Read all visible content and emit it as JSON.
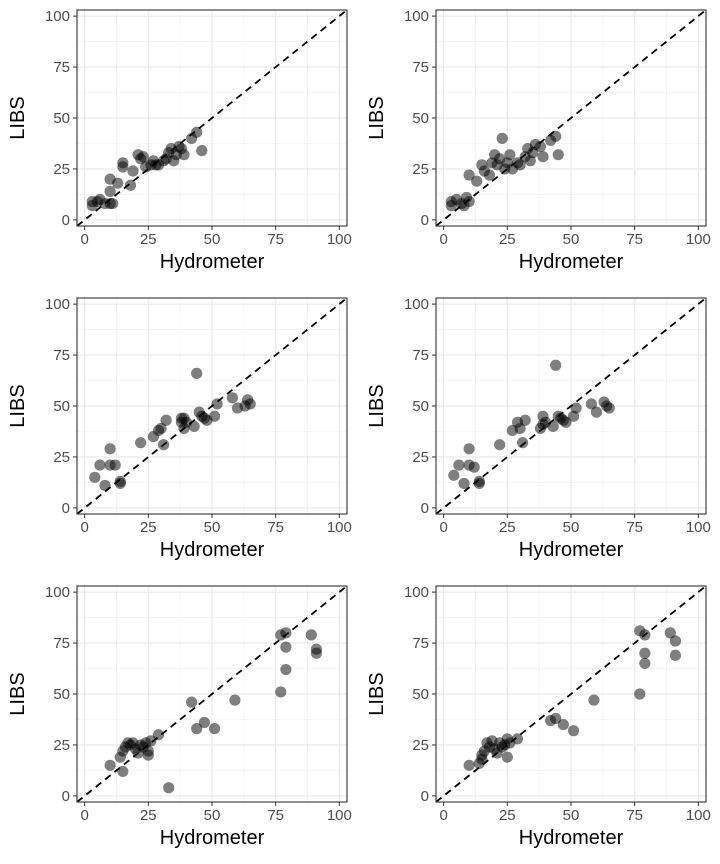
{
  "chart_data": [
    {
      "type": "scatter",
      "xlabel": "Hydrometer",
      "ylabel": "LIBS",
      "xlim": [
        -3,
        103
      ],
      "ylim": [
        -3,
        103
      ],
      "xticks": [
        "0",
        "25",
        "50",
        "75",
        "100"
      ],
      "yticks": [
        "0",
        "25",
        "50",
        "75",
        "100"
      ],
      "reference_line": "y = x (dashed)",
      "grid": true,
      "points": [
        [
          3,
          7
        ],
        [
          3,
          9
        ],
        [
          5,
          9
        ],
        [
          6,
          10
        ],
        [
          8,
          8
        ],
        [
          10,
          8
        ],
        [
          11,
          8
        ],
        [
          10,
          14
        ],
        [
          10,
          20
        ],
        [
          13,
          18
        ],
        [
          15,
          26
        ],
        [
          15,
          28
        ],
        [
          18,
          17
        ],
        [
          19,
          24
        ],
        [
          21,
          32
        ],
        [
          22,
          30
        ],
        [
          23,
          31
        ],
        [
          24,
          26
        ],
        [
          26,
          27
        ],
        [
          27,
          29
        ],
        [
          28,
          27
        ],
        [
          29,
          27
        ],
        [
          31,
          29
        ],
        [
          32,
          30
        ],
        [
          33,
          33
        ],
        [
          34,
          35
        ],
        [
          35,
          29
        ],
        [
          36,
          32
        ],
        [
          37,
          36
        ],
        [
          38,
          35
        ],
        [
          39,
          32
        ],
        [
          42,
          40
        ],
        [
          44,
          43
        ],
        [
          46,
          34
        ]
      ]
    },
    {
      "type": "scatter",
      "xlabel": "Hydrometer",
      "ylabel": "LIBS",
      "xlim": [
        -3,
        103
      ],
      "ylim": [
        -3,
        103
      ],
      "xticks": [
        "0",
        "25",
        "50",
        "75",
        "100"
      ],
      "yticks": [
        "0",
        "25",
        "50",
        "75",
        "100"
      ],
      "reference_line": "y = x (dashed)",
      "grid": true,
      "points": [
        [
          3,
          7
        ],
        [
          3,
          9
        ],
        [
          5,
          10
        ],
        [
          7,
          8
        ],
        [
          8,
          7
        ],
        [
          9,
          11
        ],
        [
          10,
          9
        ],
        [
          10,
          22
        ],
        [
          13,
          19
        ],
        [
          15,
          27
        ],
        [
          16,
          24
        ],
        [
          18,
          22
        ],
        [
          19,
          28
        ],
        [
          20,
          32
        ],
        [
          21,
          27
        ],
        [
          22,
          30
        ],
        [
          23,
          40
        ],
        [
          24,
          25
        ],
        [
          25,
          28
        ],
        [
          26,
          32
        ],
        [
          27,
          25
        ],
        [
          29,
          28
        ],
        [
          30,
          27
        ],
        [
          32,
          31
        ],
        [
          33,
          35
        ],
        [
          34,
          29
        ],
        [
          35,
          33
        ],
        [
          36,
          37
        ],
        [
          38,
          36
        ],
        [
          39,
          31
        ],
        [
          42,
          39
        ],
        [
          44,
          41
        ],
        [
          45,
          32
        ]
      ]
    },
    {
      "type": "scatter",
      "xlabel": "Hydrometer",
      "ylabel": "LIBS",
      "xlim": [
        -3,
        103
      ],
      "ylim": [
        -3,
        103
      ],
      "xticks": [
        "0",
        "25",
        "50",
        "75",
        "100"
      ],
      "yticks": [
        "0",
        "25",
        "50",
        "75",
        "100"
      ],
      "reference_line": "y = x (dashed)",
      "grid": true,
      "points": [
        [
          4,
          15
        ],
        [
          6,
          21
        ],
        [
          8,
          11
        ],
        [
          10,
          21
        ],
        [
          10,
          29
        ],
        [
          12,
          21
        ],
        [
          14,
          13
        ],
        [
          14,
          12
        ],
        [
          22,
          32
        ],
        [
          27,
          35
        ],
        [
          29,
          38
        ],
        [
          30,
          39
        ],
        [
          31,
          31
        ],
        [
          32,
          43
        ],
        [
          38,
          42
        ],
        [
          38,
          44
        ],
        [
          39,
          39
        ],
        [
          39,
          44
        ],
        [
          40,
          42
        ],
        [
          43,
          40
        ],
        [
          44,
          66
        ],
        [
          45,
          47
        ],
        [
          46,
          45
        ],
        [
          47,
          44
        ],
        [
          48,
          43
        ],
        [
          51,
          45
        ],
        [
          52,
          51
        ],
        [
          58,
          54
        ],
        [
          60,
          49
        ],
        [
          63,
          50
        ],
        [
          64,
          53
        ],
        [
          65,
          51
        ]
      ]
    },
    {
      "type": "scatter",
      "xlabel": "Hydrometer",
      "ylabel": "LIBS",
      "xlim": [
        -3,
        103
      ],
      "ylim": [
        -3,
        103
      ],
      "xticks": [
        "0",
        "25",
        "50",
        "75",
        "100"
      ],
      "yticks": [
        "0",
        "25",
        "50",
        "75",
        "100"
      ],
      "reference_line": "y = x (dashed)",
      "grid": true,
      "points": [
        [
          4,
          16
        ],
        [
          6,
          21
        ],
        [
          8,
          12
        ],
        [
          10,
          21
        ],
        [
          10,
          29
        ],
        [
          12,
          20
        ],
        [
          14,
          13
        ],
        [
          14,
          12
        ],
        [
          22,
          31
        ],
        [
          27,
          38
        ],
        [
          29,
          42
        ],
        [
          30,
          39
        ],
        [
          31,
          32
        ],
        [
          32,
          43
        ],
        [
          38,
          39
        ],
        [
          39,
          45
        ],
        [
          39,
          41
        ],
        [
          40,
          42
        ],
        [
          43,
          40
        ],
        [
          44,
          70
        ],
        [
          45,
          45
        ],
        [
          46,
          44
        ],
        [
          47,
          43
        ],
        [
          48,
          42
        ],
        [
          51,
          45
        ],
        [
          52,
          49
        ],
        [
          58,
          51
        ],
        [
          60,
          47
        ],
        [
          63,
          52
        ],
        [
          64,
          50
        ],
        [
          65,
          49
        ]
      ]
    },
    {
      "type": "scatter",
      "xlabel": "Hydrometer",
      "ylabel": "LIBS",
      "xlim": [
        -3,
        103
      ],
      "ylim": [
        -3,
        103
      ],
      "xticks": [
        "0",
        "25",
        "50",
        "75",
        "100"
      ],
      "yticks": [
        "0",
        "25",
        "50",
        "75",
        "100"
      ],
      "reference_line": "y = x (dashed)",
      "grid": true,
      "points": [
        [
          10,
          15
        ],
        [
          14,
          19
        ],
        [
          15,
          22
        ],
        [
          15,
          12
        ],
        [
          16,
          24
        ],
        [
          17,
          26
        ],
        [
          18,
          25
        ],
        [
          19,
          26
        ],
        [
          20,
          23
        ],
        [
          21,
          21
        ],
        [
          22,
          25
        ],
        [
          23,
          24
        ],
        [
          24,
          26
        ],
        [
          25,
          20
        ],
        [
          25,
          22
        ],
        [
          26,
          27
        ],
        [
          29,
          30
        ],
        [
          33,
          4
        ],
        [
          42,
          46
        ],
        [
          44,
          33
        ],
        [
          47,
          36
        ],
        [
          51,
          33
        ],
        [
          59,
          47
        ],
        [
          77,
          51
        ],
        [
          77,
          79
        ],
        [
          79,
          62
        ],
        [
          79,
          73
        ],
        [
          79,
          80
        ],
        [
          89,
          79
        ],
        [
          91,
          72
        ],
        [
          91,
          70
        ]
      ]
    },
    {
      "type": "scatter",
      "xlabel": "Hydrometer",
      "ylabel": "LIBS",
      "xlim": [
        -3,
        103
      ],
      "ylim": [
        -3,
        103
      ],
      "xticks": [
        "0",
        "25",
        "50",
        "75",
        "100"
      ],
      "yticks": [
        "0",
        "25",
        "50",
        "75",
        "100"
      ],
      "reference_line": "y = x (dashed)",
      "grid": true,
      "points": [
        [
          10,
          15
        ],
        [
          14,
          16
        ],
        [
          15,
          20
        ],
        [
          15,
          18
        ],
        [
          16,
          22
        ],
        [
          17,
          26
        ],
        [
          18,
          24
        ],
        [
          19,
          27
        ],
        [
          20,
          23
        ],
        [
          21,
          21
        ],
        [
          22,
          26
        ],
        [
          23,
          24
        ],
        [
          24,
          25
        ],
        [
          25,
          19
        ],
        [
          25,
          28
        ],
        [
          26,
          26
        ],
        [
          29,
          28
        ],
        [
          42,
          37
        ],
        [
          44,
          38
        ],
        [
          47,
          35
        ],
        [
          51,
          32
        ],
        [
          59,
          47
        ],
        [
          77,
          50
        ],
        [
          77,
          81
        ],
        [
          79,
          65
        ],
        [
          79,
          70
        ],
        [
          79,
          79
        ],
        [
          89,
          80
        ],
        [
          91,
          76
        ],
        [
          91,
          69
        ]
      ]
    }
  ]
}
